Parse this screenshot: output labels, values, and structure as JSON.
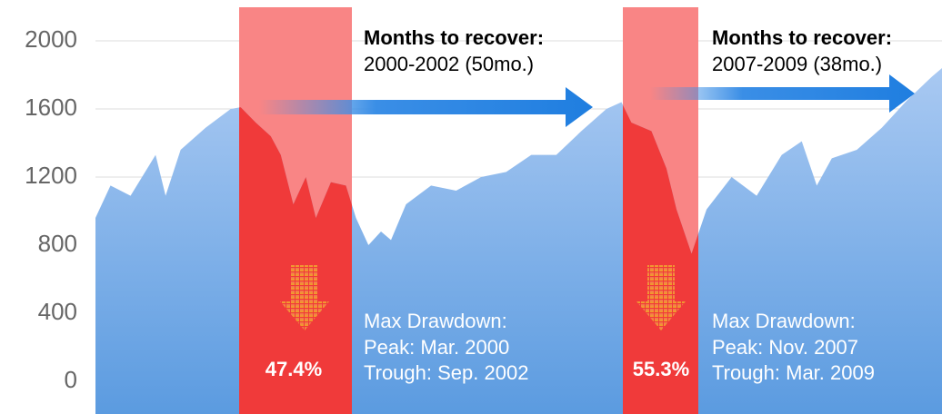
{
  "chart_data": {
    "type": "area",
    "x": [
      1997.3,
      1997.6,
      1998.0,
      1998.5,
      1998.7,
      1999.0,
      1999.5,
      2000.0,
      2000.2,
      2000.5,
      2000.8,
      2001.0,
      2001.25,
      2001.5,
      2001.7,
      2002.0,
      2002.3,
      2002.5,
      2002.75,
      2003.0,
      2003.2,
      2003.5,
      2004.0,
      2004.5,
      2005.0,
      2005.5,
      2006.0,
      2006.5,
      2007.0,
      2007.5,
      2007.8,
      2008.0,
      2008.4,
      2008.7,
      2008.9,
      2009.2,
      2009.5,
      2010.0,
      2010.5,
      2011.0,
      2011.4,
      2011.7,
      2012.0,
      2012.5,
      2013.0,
      2013.5,
      2014.0,
      2014.2
    ],
    "series": [
      {
        "color": "#7fb0ea",
        "values": [
          960,
          1150,
          1090,
          1330,
          1090,
          1360,
          1490,
          1600,
          1610,
          1520,
          1440,
          1330,
          1040,
          1200,
          960,
          1170,
          1150,
          960,
          800,
          880,
          830,
          1040,
          1150,
          1120,
          1200,
          1230,
          1330,
          1330,
          1470,
          1600,
          1640,
          1520,
          1470,
          1250,
          1010,
          750,
          1010,
          1200,
          1090,
          1330,
          1410,
          1150,
          1310,
          1360,
          1490,
          1650,
          1790,
          1840
        ]
      }
    ],
    "xlim": [
      1997.3,
      2014.2
    ],
    "ylim": [
      -192,
      2240
    ],
    "yticks": [
      0,
      400,
      800,
      1200,
      1600,
      2000
    ],
    "grid": true,
    "annotations": [
      {
        "heading": "Months to recover:",
        "period": "2000-2002 (50mo.)",
        "label": "Max Drawdown:",
        "peak": "Peak: Mar. 2000",
        "trough": "Trough: Sep. 2002",
        "drawdown": "47.4%"
      },
      {
        "heading": "Months to recover:",
        "period": "2007-2009 (38mo.)",
        "label": "Max Drawdown:",
        "peak": "Peak: Nov. 2007",
        "trough": "Trough: Mar. 2009",
        "drawdown": "55.3%"
      }
    ]
  }
}
